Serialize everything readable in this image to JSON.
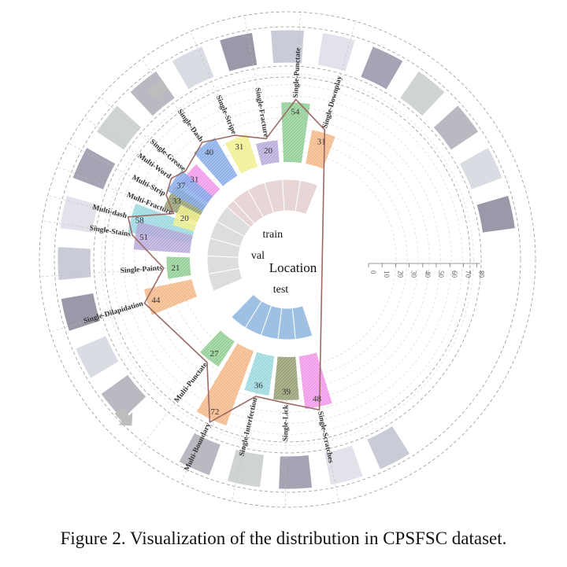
{
  "caption": "Figure 2. Visualization of the distribution in CPSFSC dataset.",
  "colors": {
    "green": "#86c98a",
    "cyan": "#92d4dc",
    "olive": "#8a9464",
    "pink": "#ee8ee6",
    "blue": "#7fa6e6",
    "yellow": "#f0ee88",
    "lavender": "#b2a2d6",
    "orange": "#f2b27c",
    "curve": "#9c6a66",
    "train_block": "#e8d6d6",
    "val_block": "#dddddd",
    "test_block": "#9ec0e2"
  },
  "chart_data": {
    "type": "bar",
    "center_label": "Location",
    "radial_axis": {
      "ticks": [
        0,
        10,
        20,
        30,
        40,
        50,
        60,
        70,
        80
      ],
      "range": [
        0,
        80
      ]
    },
    "groups": [
      {
        "name": "train",
        "categories": [
          "Multi-dash",
          "Multi-Strip",
          "Single-Grease",
          "Single-Dash",
          "Single-Stripe",
          "Single-Fracture",
          "Single-Punctate",
          "Single-Downplay"
        ],
        "values": [
          58,
          33,
          31,
          40,
          31,
          20,
          54,
          31
        ],
        "colors": [
          "cyan",
          "olive",
          "pink",
          "blue",
          "yellow",
          "lavender",
          "green",
          "orange"
        ]
      },
      {
        "name": "val",
        "categories": [
          "Single-Dilapidation",
          "Single-Paints",
          "Single-Stains",
          "Multi-Fracture",
          "Multi-Word"
        ],
        "values": [
          44,
          21,
          51,
          20,
          37
        ],
        "colors": [
          "orange",
          "green",
          "lavender",
          "yellow",
          "blue"
        ]
      },
      {
        "name": "test",
        "categories": [
          "Single-Scratches",
          "Single-Lick",
          "Single-Interfection",
          "Multi-Boundary",
          "Multi-Punctate"
        ],
        "values": [
          48,
          39,
          36,
          72,
          27
        ],
        "colors": [
          "pink",
          "olive",
          "cyan",
          "orange",
          "green"
        ]
      }
    ]
  }
}
